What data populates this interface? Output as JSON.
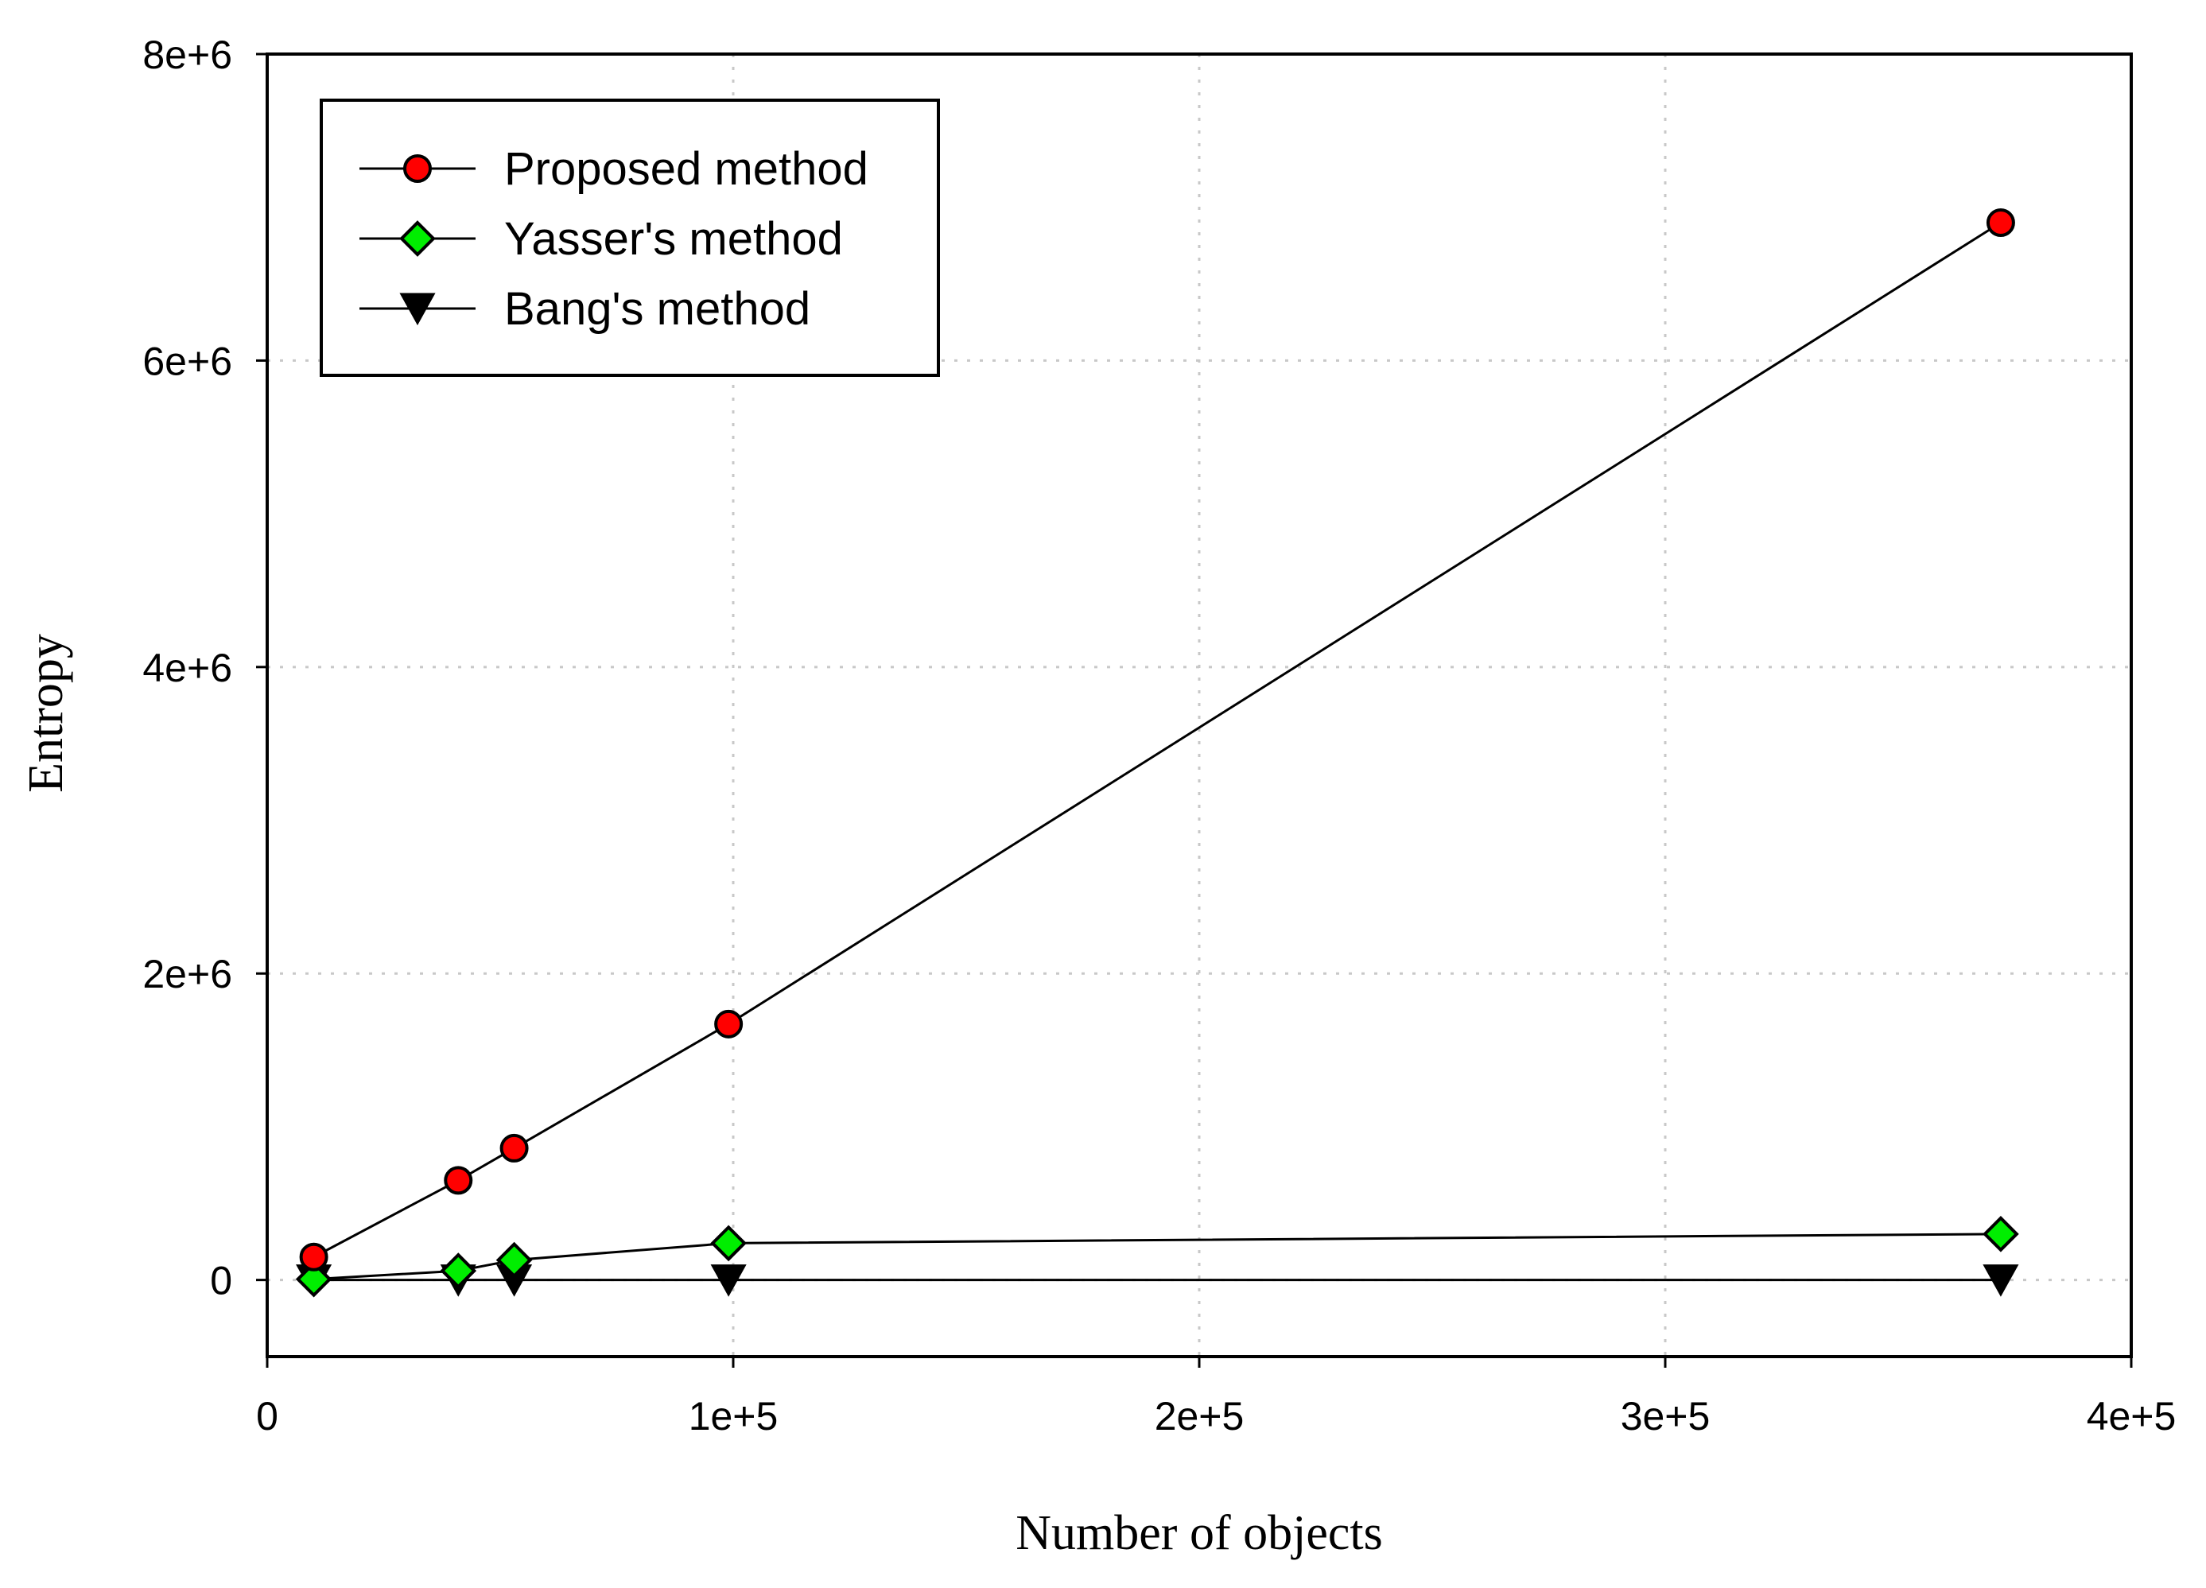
{
  "chart_data": {
    "type": "line",
    "title": "",
    "xlabel": "Number of objects",
    "ylabel": "Entropy",
    "xlim": [
      0,
      400000
    ],
    "ylim": [
      -500000,
      8000000
    ],
    "grid": true,
    "legend_position": "top-left",
    "x_ticks": [
      {
        "value": 0,
        "label": "0"
      },
      {
        "value": 100000,
        "label": "1e+5"
      },
      {
        "value": 200000,
        "label": "2e+5"
      },
      {
        "value": 300000,
        "label": "3e+5"
      },
      {
        "value": 400000,
        "label": "4e+5"
      }
    ],
    "y_ticks": [
      {
        "value": 0,
        "label": "0"
      },
      {
        "value": 2000000,
        "label": "2e+6"
      },
      {
        "value": 4000000,
        "label": "4e+6"
      },
      {
        "value": 6000000,
        "label": "6e+6"
      },
      {
        "value": 8000000,
        "label": "8e+6"
      }
    ],
    "series": [
      {
        "name": "Proposed method",
        "marker": "circle",
        "color": "#ff0000",
        "x": [
          10000,
          41000,
          53000,
          99000,
          372000
        ],
        "y": [
          150000,
          650000,
          860000,
          1670000,
          6900000
        ]
      },
      {
        "name": "Yasser's method",
        "marker": "diamond",
        "color": "#00ee00",
        "x": [
          10000,
          41000,
          53000,
          99000,
          372000
        ],
        "y": [
          5000,
          60000,
          130000,
          240000,
          300000
        ]
      },
      {
        "name": "Bang's method",
        "marker": "triangle-down",
        "color": "#000000",
        "x": [
          10000,
          41000,
          53000,
          99000,
          372000
        ],
        "y": [
          0,
          0,
          0,
          0,
          0
        ]
      }
    ]
  }
}
